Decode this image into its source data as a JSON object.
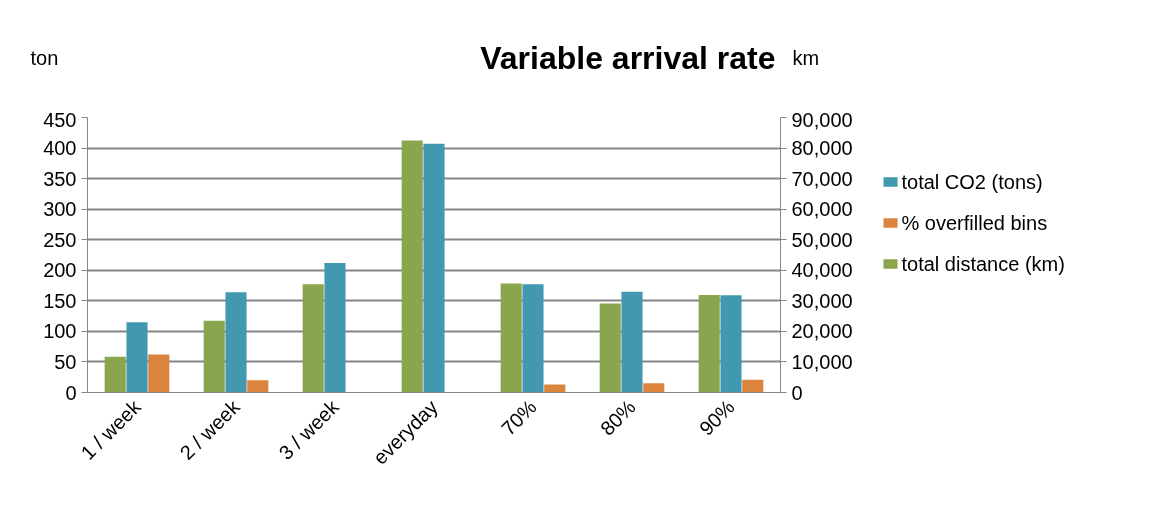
{
  "chart_data": {
    "type": "bar",
    "title": "Variable arrival rate",
    "ylabel": "ton",
    "y2label": "km",
    "categories": [
      "1 / week",
      "2 / week",
      "3 / week",
      "everyday",
      "70%",
      "80%",
      "90%"
    ],
    "series": [
      {
        "name": "total CO2 (tons)",
        "color": "#4198af",
        "values": [
          115,
          164,
          212,
          407,
          177,
          165,
          159
        ]
      },
      {
        "name": "% overfilled bins",
        "color": "#db843d",
        "values": [
          62,
          20,
          null,
          null,
          13,
          15,
          21
        ]
      },
      {
        "name": "total distance (km)",
        "color": "#89a54e",
        "axis": "y2",
        "values": [
          11700,
          23500,
          35400,
          82500,
          35700,
          29100,
          31900
        ]
      }
    ],
    "ylim": [
      0,
      450
    ],
    "yticks": [
      0,
      50,
      100,
      150,
      200,
      250,
      300,
      350,
      400,
      450
    ],
    "y2lim": [
      0,
      90000
    ],
    "y2ticks": [
      {
        "value": 0,
        "label": "0"
      },
      {
        "value": 10000,
        "label": "10,000"
      },
      {
        "value": 20000,
        "label": "20,000"
      },
      {
        "value": 30000,
        "label": "30,000"
      },
      {
        "value": 40000,
        "label": "40,000"
      },
      {
        "value": 50000,
        "label": "50,000"
      },
      {
        "value": 60000,
        "label": "60,000"
      },
      {
        "value": 70000,
        "label": "70,000"
      },
      {
        "value": 80000,
        "label": "80,000"
      },
      {
        "value": 90000,
        "label": "90,000"
      }
    ],
    "grid": "y",
    "legend": "right"
  }
}
